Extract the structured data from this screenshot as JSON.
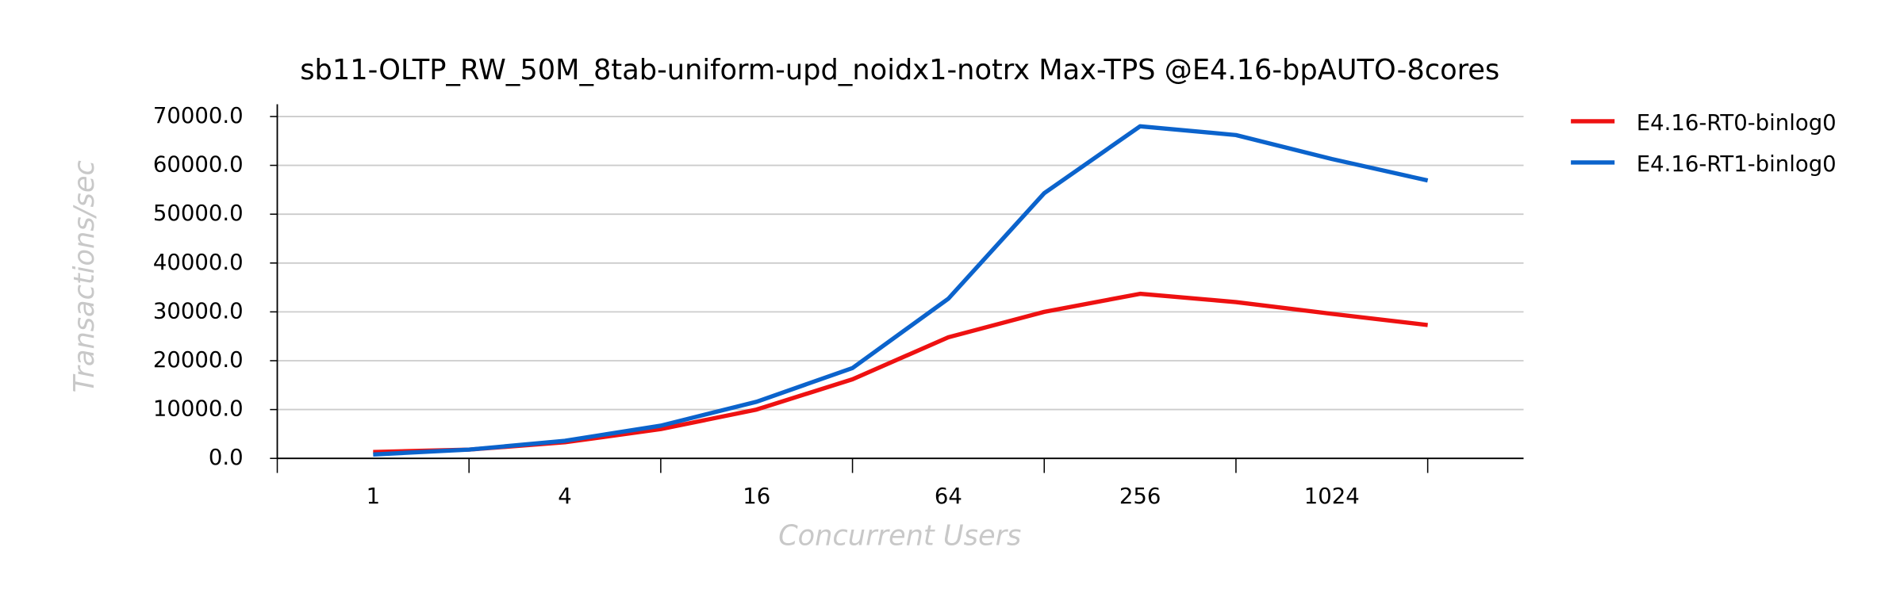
{
  "chart_data": {
    "type": "line",
    "title": "sb11-OLTP_RW_50M_8tab-uniform-upd_noidx1-notrx Max-TPS @E4.16-bpAUTO-8cores",
    "x_label": "Concurrent Users",
    "y_label": "Transactions/sec",
    "x": [
      1,
      2,
      4,
      8,
      16,
      32,
      64,
      128,
      256,
      512,
      1024,
      2048
    ],
    "x_scale": "log2",
    "xlim": [
      0.5,
      4096
    ],
    "xticks": [
      1,
      4,
      16,
      64,
      256,
      1024
    ],
    "x_minor_ticks": [
      0.5,
      2,
      8,
      32,
      128,
      512,
      2048
    ],
    "ylim": [
      0,
      72500
    ],
    "yticks": [
      {
        "value": 0,
        "label": "0.0"
      },
      {
        "value": 10000,
        "label": "10000.0"
      },
      {
        "value": 20000,
        "label": "20000.0"
      },
      {
        "value": 30000,
        "label": "30000.0"
      },
      {
        "value": 40000,
        "label": "40000.0"
      },
      {
        "value": 50000,
        "label": "50000.0"
      },
      {
        "value": 60000,
        "label": "60000.0"
      },
      {
        "value": 70000,
        "label": "70000.0"
      }
    ],
    "grid": true,
    "legend": "outside-right",
    "series": [
      {
        "name": "E4.16-RT0-binlog0",
        "color": "#ee1111",
        "values": [
          1300,
          1800,
          3300,
          6000,
          10000,
          16200,
          24800,
          30000,
          33700,
          32000,
          29600,
          27300
        ]
      },
      {
        "name": "E4.16-RT1-binlog0",
        "color": "#0b63cc",
        "values": [
          800,
          1800,
          3600,
          6700,
          11600,
          18500,
          32700,
          54300,
          68000,
          66200,
          61300,
          56900
        ]
      }
    ]
  }
}
